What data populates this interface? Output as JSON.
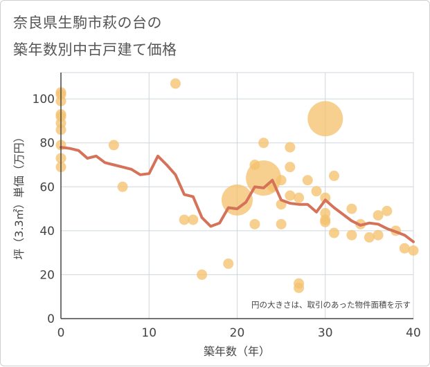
{
  "title_line1": "奈良県生駒市萩の台の",
  "title_line2": "築年数別中古戸建て価格",
  "chart_data": {
    "type": "scatter",
    "xlabel": "築年数（年）",
    "ylabel": "坪（3.3㎡）単価（万円）",
    "xlim": [
      0,
      40
    ],
    "ylim": [
      0,
      112
    ],
    "xticks": [
      0,
      10,
      20,
      30,
      40
    ],
    "yticks": [
      0,
      20,
      40,
      60,
      80,
      100
    ],
    "grid": true,
    "annotation": "円の大きさは、取引のあった物件面積を示す",
    "colors": {
      "points": "#f5c270",
      "line": "#d4725a"
    },
    "points": [
      {
        "x": 0,
        "y": 103,
        "size": 1
      },
      {
        "x": 0,
        "y": 102,
        "size": 1
      },
      {
        "x": 0,
        "y": 99,
        "size": 1
      },
      {
        "x": 0,
        "y": 93,
        "size": 1
      },
      {
        "x": 0,
        "y": 92,
        "size": 1
      },
      {
        "x": 0,
        "y": 89,
        "size": 1
      },
      {
        "x": 0,
        "y": 86,
        "size": 1
      },
      {
        "x": 0,
        "y": 79,
        "size": 1
      },
      {
        "x": 0,
        "y": 73,
        "size": 1
      },
      {
        "x": 0,
        "y": 69,
        "size": 1
      },
      {
        "x": 6,
        "y": 79,
        "size": 1
      },
      {
        "x": 7,
        "y": 60,
        "size": 1
      },
      {
        "x": 13,
        "y": 107,
        "size": 1
      },
      {
        "x": 14,
        "y": 45,
        "size": 1
      },
      {
        "x": 15,
        "y": 45,
        "size": 1
      },
      {
        "x": 16,
        "y": 20,
        "size": 1
      },
      {
        "x": 19,
        "y": 25,
        "size": 1
      },
      {
        "x": 20,
        "y": 54,
        "size": 3
      },
      {
        "x": 22,
        "y": 70,
        "size": 1
      },
      {
        "x": 22,
        "y": 43,
        "size": 1
      },
      {
        "x": 23,
        "y": 80,
        "size": 1
      },
      {
        "x": 23,
        "y": 64,
        "size": 3.4
      },
      {
        "x": 24,
        "y": 60,
        "size": 1
      },
      {
        "x": 25,
        "y": 63,
        "size": 1
      },
      {
        "x": 25,
        "y": 52,
        "size": 1
      },
      {
        "x": 25,
        "y": 43,
        "size": 1
      },
      {
        "x": 26,
        "y": 78,
        "size": 1
      },
      {
        "x": 26,
        "y": 69,
        "size": 1
      },
      {
        "x": 26,
        "y": 56,
        "size": 1
      },
      {
        "x": 27,
        "y": 55,
        "size": 1
      },
      {
        "x": 27,
        "y": 16,
        "size": 1
      },
      {
        "x": 27,
        "y": 14,
        "size": 1
      },
      {
        "x": 28,
        "y": 63,
        "size": 1
      },
      {
        "x": 29,
        "y": 58,
        "size": 1
      },
      {
        "x": 30,
        "y": 91,
        "size": 3.4
      },
      {
        "x": 30,
        "y": 55,
        "size": 1
      },
      {
        "x": 30,
        "y": 48,
        "size": 1
      },
      {
        "x": 30,
        "y": 45,
        "size": 1
      },
      {
        "x": 30,
        "y": 44,
        "size": 1
      },
      {
        "x": 31,
        "y": 65,
        "size": 1
      },
      {
        "x": 31,
        "y": 39,
        "size": 1
      },
      {
        "x": 33,
        "y": 50,
        "size": 1
      },
      {
        "x": 33,
        "y": 38,
        "size": 1
      },
      {
        "x": 34,
        "y": 43,
        "size": 1
      },
      {
        "x": 35,
        "y": 37,
        "size": 1
      },
      {
        "x": 36,
        "y": 47,
        "size": 1
      },
      {
        "x": 36,
        "y": 38,
        "size": 1
      },
      {
        "x": 37,
        "y": 49,
        "size": 1
      },
      {
        "x": 38,
        "y": 40,
        "size": 1
      },
      {
        "x": 39,
        "y": 32,
        "size": 1
      },
      {
        "x": 40,
        "y": 31,
        "size": 1
      }
    ],
    "line": {
      "x": [
        0,
        1,
        2,
        3,
        4,
        5,
        6,
        7,
        8,
        9,
        10,
        11,
        12,
        13,
        14,
        15,
        16,
        17,
        18,
        19,
        20,
        21,
        22,
        23,
        24,
        25,
        26,
        27,
        28,
        29,
        30,
        31,
        32,
        33,
        34,
        35,
        36,
        37,
        38,
        39,
        40
      ],
      "y": [
        78,
        77.5,
        76.5,
        73,
        74,
        71,
        70,
        69,
        68,
        65.5,
        66,
        74,
        70,
        65.5,
        56.5,
        55.5,
        46,
        42,
        43.5,
        50.5,
        50,
        53,
        60,
        59.5,
        63,
        54,
        52.5,
        52,
        52,
        48.5,
        54,
        50.5,
        47.5,
        44.5,
        42.5,
        43.5,
        43,
        41,
        39.5,
        38,
        35
      ]
    }
  }
}
